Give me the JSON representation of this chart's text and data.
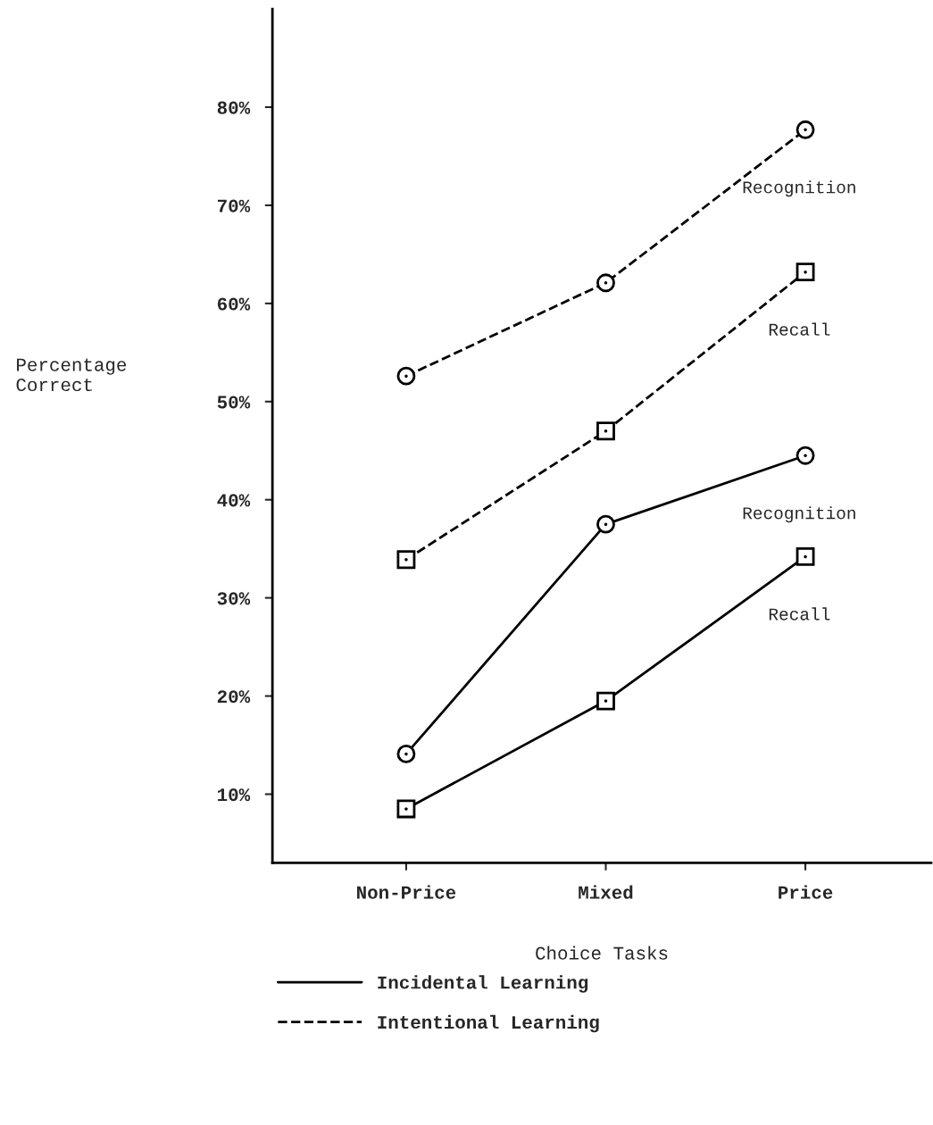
{
  "chart_data": {
    "type": "line",
    "xlabel": "Choice Tasks",
    "ylabel": "Percentage\nCorrect",
    "categories": [
      "Non-Price",
      "Mixed",
      "Price"
    ],
    "series": [
      {
        "name": "Incidental Learning",
        "color": "#000000",
        "marker": "circle",
        "line_style": "solid",
        "values": [
          14.1,
          37.5,
          44.5
        ]
      },
      {
        "color": "#000000",
        "marker": "square",
        "line_style": "solid",
        "values": [
          8.5,
          19.5,
          34.2
        ]
      },
      {
        "name": "Intentional Learning",
        "color": "#000000",
        "marker": "circle",
        "line_style": "dashed",
        "values": [
          52.6,
          62.1,
          77.7
        ]
      },
      {
        "color": "#000000",
        "marker": "square",
        "line_style": "dashed",
        "values": [
          33.9,
          47.0,
          63.2
        ]
      }
    ],
    "ylim": [
      3,
      90
    ],
    "yticks": [
      {
        "value": 10,
        "label": "10%"
      },
      {
        "value": 20,
        "label": "20%"
      },
      {
        "value": 30,
        "label": "30%"
      },
      {
        "value": 40,
        "label": "40%"
      },
      {
        "value": 50,
        "label": "50%"
      },
      {
        "value": 60,
        "label": "60%"
      },
      {
        "value": 70,
        "label": "70%"
      },
      {
        "value": 80,
        "label": "80%"
      }
    ],
    "grid": false,
    "legend": "bottom",
    "annotations": [
      "Recognition",
      "Recall",
      "Recognition",
      "Recall"
    ]
  }
}
